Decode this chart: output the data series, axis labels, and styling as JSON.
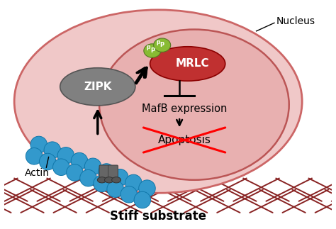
{
  "fig_width": 4.74,
  "fig_height": 3.23,
  "dpi": 100,
  "bg_color": "#ffffff",
  "cell_color": "#f0c8c8",
  "cell_edge_color": "#cc6666",
  "nucleus_color": "#e8b0b0",
  "nucleus_edge_color": "#bb5555",
  "zipk_color": "#808080",
  "zipk_text": "ZIPK",
  "mrlc_color": "#c03030",
  "mrlc_text": "MRLC",
  "phospho_color": "#88bb33",
  "actin_color": "#3399cc",
  "actin_edge": "#1177aa",
  "substrate_color": "#882222",
  "stiff_substrate_text": "Stiff substrate",
  "nucleus_label": "Nucleus",
  "actin_label": "Actin",
  "mafb_text": "MafB expression",
  "apoptosis_text": "Apoptosis",
  "fa_color": "#666666",
  "fa_base_color": "#555555"
}
